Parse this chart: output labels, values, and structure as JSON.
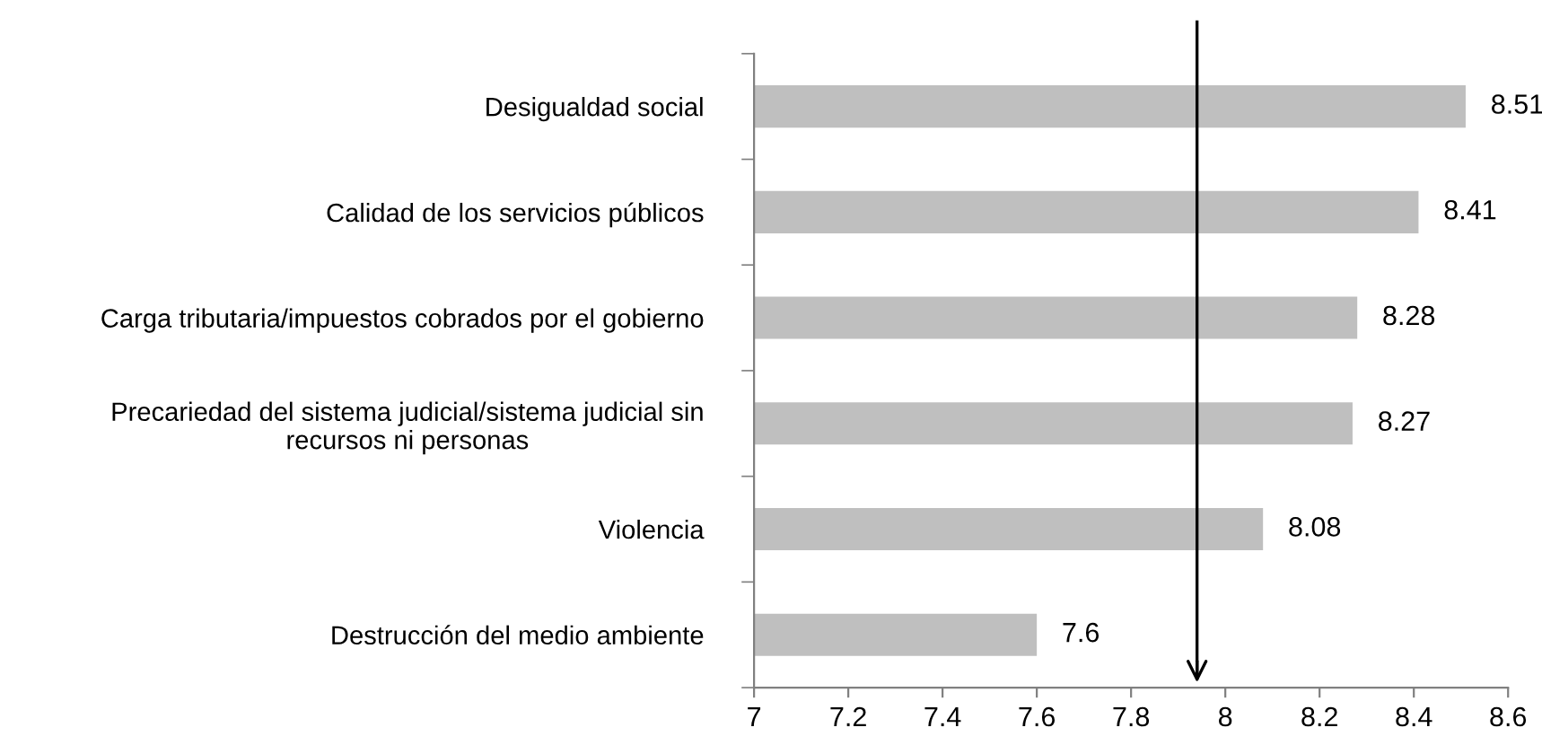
{
  "chart_data": {
    "type": "bar",
    "orientation": "horizontal",
    "categories": [
      "Desigualdad social",
      "Calidad de los servicios públicos",
      "Carga tributaria/impuestos cobrados por el gobierno",
      "Precariedad del sistema judicial/sistema judicial sin\nrecursos ni personas",
      "Violencia",
      "Destrucción del medio ambiente"
    ],
    "values": [
      8.51,
      8.41,
      8.28,
      8.27,
      8.08,
      7.6
    ],
    "color": "#bfbfbf",
    "xlim": [
      7,
      8.6
    ],
    "xticks": [
      7,
      7.2,
      7.4,
      7.6,
      7.8,
      8,
      8.2,
      8.4,
      8.6
    ],
    "data_labels": true,
    "grid": false,
    "ref_lines": [
      {
        "axis": "x",
        "value": 7.94,
        "line_style": "solid",
        "color": "#000000"
      }
    ]
  }
}
